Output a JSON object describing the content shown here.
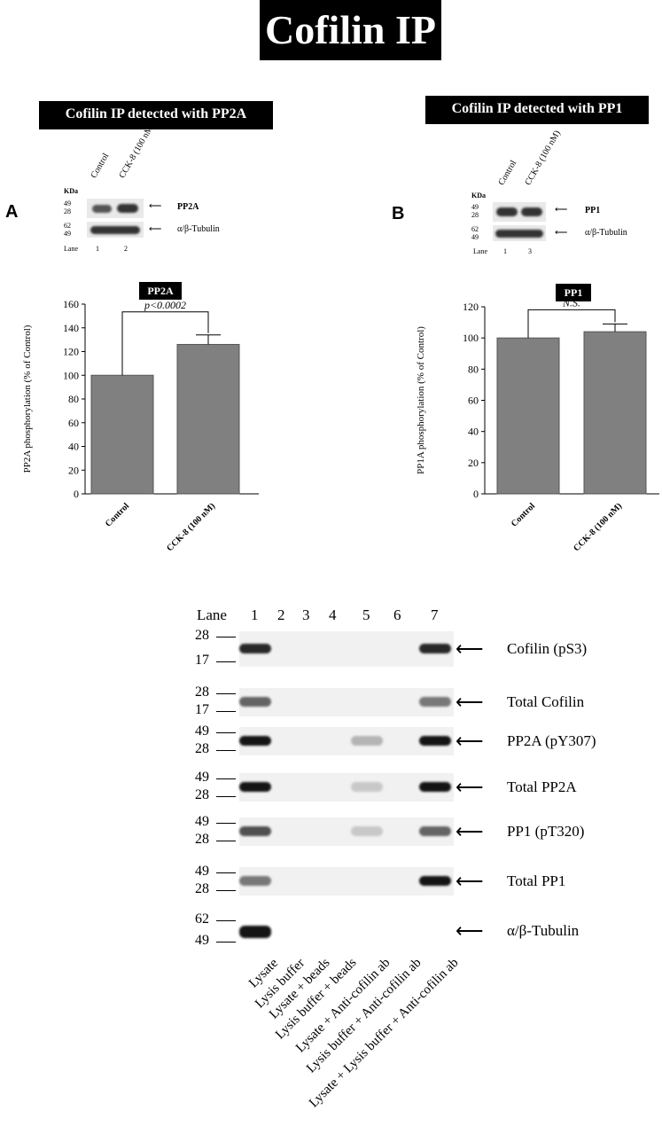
{
  "title": "Cofilin IP",
  "panelA": {
    "heading": "Cofilin IP detected with PP2A",
    "letter": "A",
    "lane_headers": [
      "Control",
      "CCK-8 (100 nM)"
    ],
    "kda_label": "KDa",
    "mw_top": [
      "49",
      "28"
    ],
    "mw_bottom": [
      "62",
      "49"
    ],
    "band_labels": [
      "PP2A",
      "α/β-Tubulin"
    ],
    "lane_label": "Lane",
    "lane_numbers": [
      "1",
      "2"
    ],
    "chart_tag": "PP2A",
    "chart_data": {
      "type": "bar",
      "categories": [
        "Control",
        "CCK-8 (100 nM)"
      ],
      "values": [
        100,
        126
      ],
      "errors": [
        0,
        8
      ],
      "ylabel": "PP2A phosphorylation (% of Control)",
      "ylim": [
        0,
        160
      ],
      "yticks": [
        "0",
        "20",
        "40",
        "60",
        "80",
        "100",
        "120",
        "140",
        "160"
      ],
      "annotation": "p<0.0002",
      "bar_color": "#808080"
    }
  },
  "panelB": {
    "heading": "Cofilin IP detected with PP1",
    "letter": "B",
    "lane_headers": [
      "Control",
      "CCK-8 (100 nM)"
    ],
    "kda_label": "KDa",
    "mw_top": [
      "49",
      "28"
    ],
    "mw_bottom": [
      "62",
      "49"
    ],
    "band_labels": [
      "PP1",
      "α/β-Tubulin"
    ],
    "lane_label": "Lane",
    "lane_numbers": [
      "1",
      "3"
    ],
    "chart_tag": "PP1",
    "chart_data": {
      "type": "bar",
      "categories": [
        "Control",
        "CCK-8 (100 nM)"
      ],
      "values": [
        100,
        104
      ],
      "errors": [
        0,
        5
      ],
      "ylabel": "PP1A phosphorylation (% of Control)",
      "ylim": [
        0,
        120
      ],
      "yticks": [
        "0",
        "20",
        "40",
        "60",
        "80",
        "100",
        "120"
      ],
      "annotation": "N.S.",
      "bar_color": "#808080"
    }
  },
  "blot": {
    "lane_label": "Lane",
    "lanes": [
      "1",
      "2",
      "3",
      "4",
      "5",
      "6",
      "7"
    ],
    "rows": [
      {
        "label": "Cofilin (pS3)",
        "mw": [
          "28",
          "17"
        ]
      },
      {
        "label": "Total Cofilin",
        "mw": [
          "28",
          "17"
        ]
      },
      {
        "label": "PP2A (pY307)",
        "mw": [
          "49",
          "28"
        ]
      },
      {
        "label": "Total PP2A",
        "mw": [
          "49",
          "28"
        ]
      },
      {
        "label": "PP1 (pT320)",
        "mw": [
          "49",
          "28"
        ]
      },
      {
        "label": "Total PP1",
        "mw": [
          "49",
          "28"
        ]
      },
      {
        "label": "α/β-Tubulin",
        "mw": [
          "62",
          "49"
        ]
      }
    ],
    "lane_descriptions": [
      "Lysate",
      "Lysis buffer",
      "Lysate + beads",
      "Lysis buffer + beads",
      "Lysate + Anti-cofilin ab",
      "Lysis buffer + Anti-cofilin ab",
      "Lysate + Lysis buffer + Anti-cofilin ab"
    ]
  }
}
